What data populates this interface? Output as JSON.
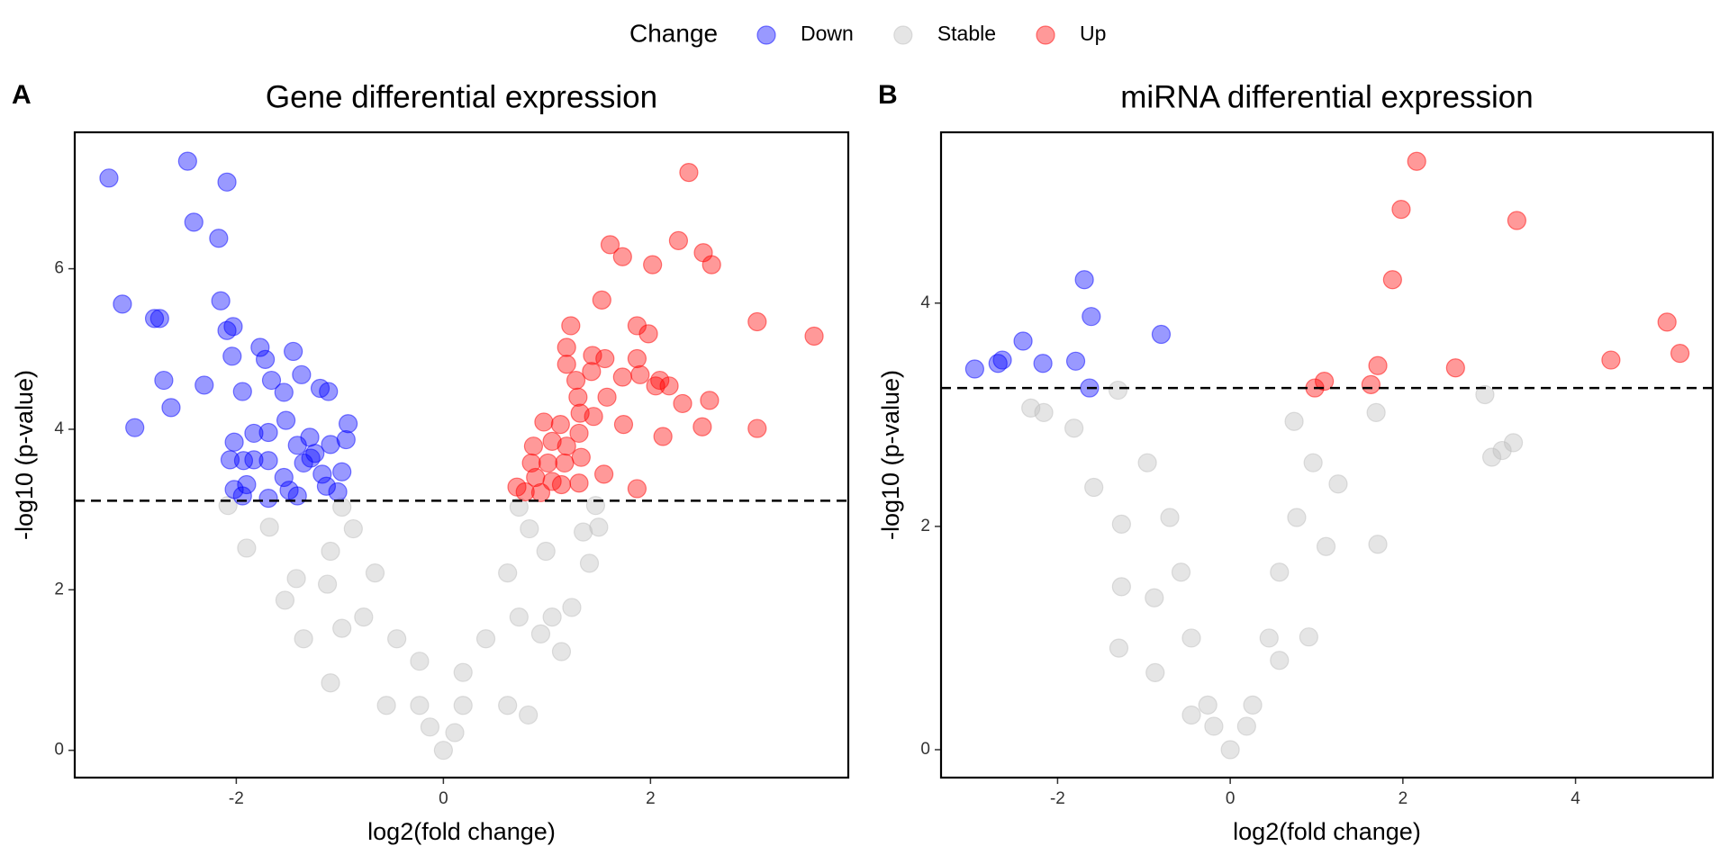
{
  "chart_data": [
    {
      "type": "scatter",
      "tag": "A",
      "title": "Gene differential expression",
      "x_label": "log2(fold change)",
      "y_label": "-log10 (p-value)",
      "legend_title": "Change",
      "legend": "top",
      "xlim": [
        -3.56,
        3.91
      ],
      "ylim": [
        -0.34,
        7.7
      ],
      "xticks": [
        -2,
        0,
        2
      ],
      "yticks": [
        0,
        2,
        4,
        6
      ],
      "hline": 3.11,
      "series": [
        {
          "name": "Down",
          "color": "#0000FF",
          "x": [
            -3.23,
            -2.47,
            -2.09,
            -2.41,
            -2.17,
            -3.1,
            -2.79,
            -2.74,
            -2.15,
            -2.09,
            -2.03,
            -2.04,
            -1.77,
            -1.72,
            -1.45,
            -2.7,
            -2.31,
            -1.94,
            -2.63,
            -2.98,
            -1.66,
            -1.54,
            -1.37,
            -1.19,
            -1.11,
            -1.52,
            -1.69,
            -1.83,
            -2.02,
            -2.06,
            -1.93,
            -1.69,
            -1.83,
            -1.29,
            -1.09,
            -0.92,
            -0.94,
            -1.24,
            -1.35,
            -1.41,
            -1.17,
            -1.54,
            -1.49,
            -2.02,
            -1.9,
            -1.13,
            -1.02,
            -0.98,
            -1.69,
            -1.94,
            -1.28,
            -1.41
          ],
          "values": [
            7.13,
            7.34,
            7.08,
            6.58,
            6.38,
            5.56,
            5.38,
            5.38,
            5.6,
            5.23,
            5.28,
            4.91,
            5.02,
            4.87,
            4.97,
            4.61,
            4.55,
            4.47,
            4.27,
            4.02,
            4.61,
            4.46,
            4.68,
            4.51,
            4.47,
            4.11,
            3.96,
            3.95,
            3.84,
            3.62,
            3.61,
            3.61,
            3.62,
            3.9,
            3.81,
            4.07,
            3.87,
            3.7,
            3.58,
            3.8,
            3.44,
            3.4,
            3.24,
            3.25,
            3.31,
            3.29,
            3.22,
            3.47,
            3.14,
            3.17,
            3.64,
            3.17
          ]
        },
        {
          "name": "Stable",
          "color": "#BEBEBE",
          "x": [
            0,
            -0.23,
            0.19,
            -0.45,
            0.41,
            -0.66,
            0.62,
            -0.87,
            0.83,
            -0.98,
            0.73,
            -1.35,
            -1.53,
            -1.12,
            -1.9,
            -2.08,
            -1.68,
            -1.42,
            -0.55,
            0.62,
            0.82,
            1.24,
            1.14,
            1.35,
            1.41,
            1.47,
            1.5,
            1.05,
            -0.23,
            0.19,
            -0.13,
            0.11,
            -0.77,
            0.73,
            -1.09,
            0.99,
            0.94,
            -0.98,
            -1.09
          ],
          "values": [
            0,
            0.56,
            0.56,
            1.39,
            1.39,
            2.21,
            2.21,
            2.76,
            2.76,
            3.03,
            3.03,
            1.39,
            1.87,
            2.07,
            2.52,
            3.05,
            2.78,
            2.14,
            0.56,
            0.56,
            0.44,
            1.78,
            1.23,
            2.72,
            2.33,
            3.05,
            2.78,
            1.66,
            1.11,
            0.97,
            0.29,
            0.22,
            1.66,
            1.66,
            2.48,
            2.48,
            1.45,
            1.52,
            0.84
          ]
        },
        {
          "name": "Up",
          "color": "#FF0000",
          "x": [
            2.37,
            1.61,
            1.73,
            2.27,
            2.51,
            2.59,
            2.02,
            1.53,
            1.23,
            3.03,
            3.58,
            1.87,
            1.98,
            1.19,
            1.44,
            1.56,
            1.19,
            1.87,
            1.28,
            1.9,
            2.09,
            1.73,
            1.43,
            2.05,
            2.18,
            2.57,
            2.31,
            1.3,
            1.58,
            1.32,
            1.45,
            1.74,
            0.97,
            1.13,
            2.5,
            3.03,
            2.12,
            0.87,
            1.31,
            1.05,
            1.19,
            0.85,
            1.01,
            1.17,
            1.33,
            1.55,
            0.89,
            0.71,
            1.05,
            1.14,
            1.87,
            1.31,
            0.94,
            0.79
          ],
          "values": [
            7.2,
            6.3,
            6.15,
            6.35,
            6.2,
            6.05,
            6.05,
            5.61,
            5.29,
            5.34,
            5.16,
            5.29,
            5.19,
            5.02,
            4.92,
            4.88,
            4.81,
            4.88,
            4.61,
            4.68,
            4.61,
            4.65,
            4.72,
            4.54,
            4.54,
            4.36,
            4.32,
            4.4,
            4.4,
            4.2,
            4.16,
            4.06,
            4.09,
            4.06,
            4.03,
            4.01,
            3.91,
            3.79,
            3.95,
            3.85,
            3.79,
            3.58,
            3.58,
            3.58,
            3.65,
            3.44,
            3.4,
            3.28,
            3.35,
            3.31,
            3.26,
            3.33,
            3.21,
            3.22
          ]
        }
      ]
    },
    {
      "type": "scatter",
      "tag": "B",
      "title": "miRNA differential expression",
      "x_label": "log2(fold change)",
      "y_label": "-log10 (p-value)",
      "xlim": [
        -3.35,
        5.59
      ],
      "ylim": [
        -0.25,
        5.53
      ],
      "xticks": [
        -2,
        0,
        2,
        4
      ],
      "yticks": [
        0,
        2,
        4
      ],
      "hline": 3.24,
      "series": [
        {
          "name": "Down",
          "color": "#0000FF",
          "x": [
            -2.96,
            -2.69,
            -2.64,
            -2.4,
            -2.17,
            -1.79,
            -1.69,
            -1.61,
            -1.63,
            -0.8
          ],
          "values": [
            3.41,
            3.46,
            3.49,
            3.66,
            3.46,
            3.48,
            4.21,
            3.88,
            3.24,
            3.72
          ]
        },
        {
          "name": "Stable",
          "color": "#BEBEBE",
          "x": [
            0,
            -0.26,
            0.26,
            -0.45,
            0.45,
            -0.57,
            0.57,
            -0.7,
            0.77,
            -0.96,
            0.96,
            -1.3,
            -2.31,
            -2.16,
            -1.81,
            -1.58,
            -1.26,
            -1.26,
            -1.29,
            -0.87,
            -0.88,
            1.69,
            1.71,
            2.95,
            3.03,
            3.15,
            3.28,
            1.25,
            1.11,
            0.74,
            0.91,
            0.57,
            -0.19,
            0.19,
            -0.45
          ],
          "values": [
            0,
            0.4,
            0.4,
            1.0,
            1.0,
            1.59,
            1.59,
            2.08,
            2.08,
            2.57,
            2.57,
            3.22,
            3.06,
            3.02,
            2.88,
            2.35,
            2.02,
            1.46,
            0.91,
            0.69,
            1.36,
            3.02,
            1.84,
            3.18,
            2.62,
            2.68,
            2.75,
            2.38,
            1.82,
            2.94,
            1.01,
            0.8,
            0.21,
            0.21,
            0.31
          ]
        },
        {
          "name": "Up",
          "color": "#FF0000",
          "x": [
            2.16,
            1.98,
            1.88,
            3.32,
            5.06,
            5.21,
            4.41,
            2.61,
            1.71,
            1.63,
            1.09,
            0.98
          ],
          "values": [
            5.27,
            4.84,
            4.21,
            4.74,
            3.83,
            3.55,
            3.49,
            3.42,
            3.44,
            3.27,
            3.3,
            3.24
          ]
        }
      ]
    }
  ]
}
